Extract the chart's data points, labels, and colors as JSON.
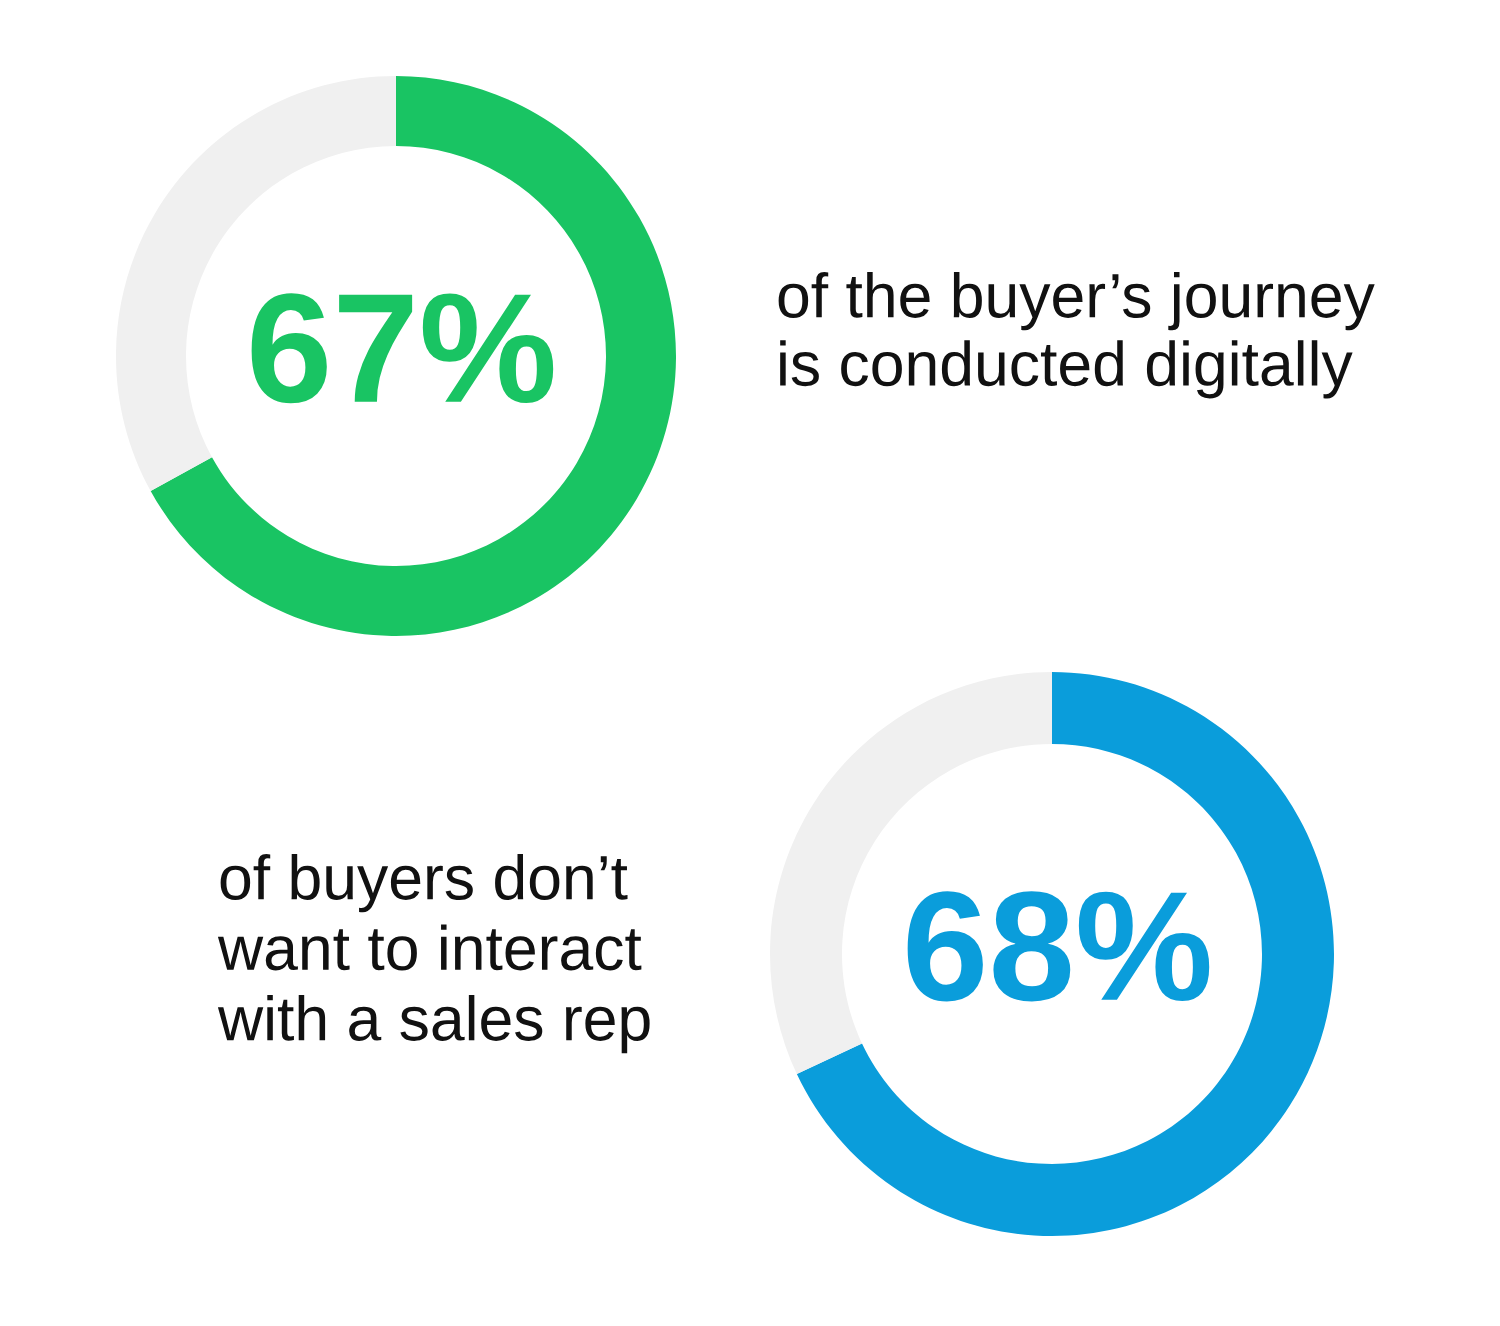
{
  "chart_data": [
    {
      "type": "donut",
      "categories": [
        null,
        null
      ],
      "values": [
        67,
        33
      ],
      "colors": [
        "#19c463",
        "#f0f0f0"
      ],
      "value_labels": [
        "67%",
        null
      ],
      "annotations": [
        "of the buyer’s journey\nis conducted digitally"
      ]
    },
    {
      "type": "donut",
      "categories": [
        null,
        null
      ],
      "values": [
        68,
        32
      ],
      "colors": [
        "#0a9ddb",
        "#f0f0f0"
      ],
      "value_labels": [
        "68%",
        null
      ],
      "annotations": [
        "of buyers don’t\nwant to interact\nwith a sales rep"
      ]
    }
  ]
}
